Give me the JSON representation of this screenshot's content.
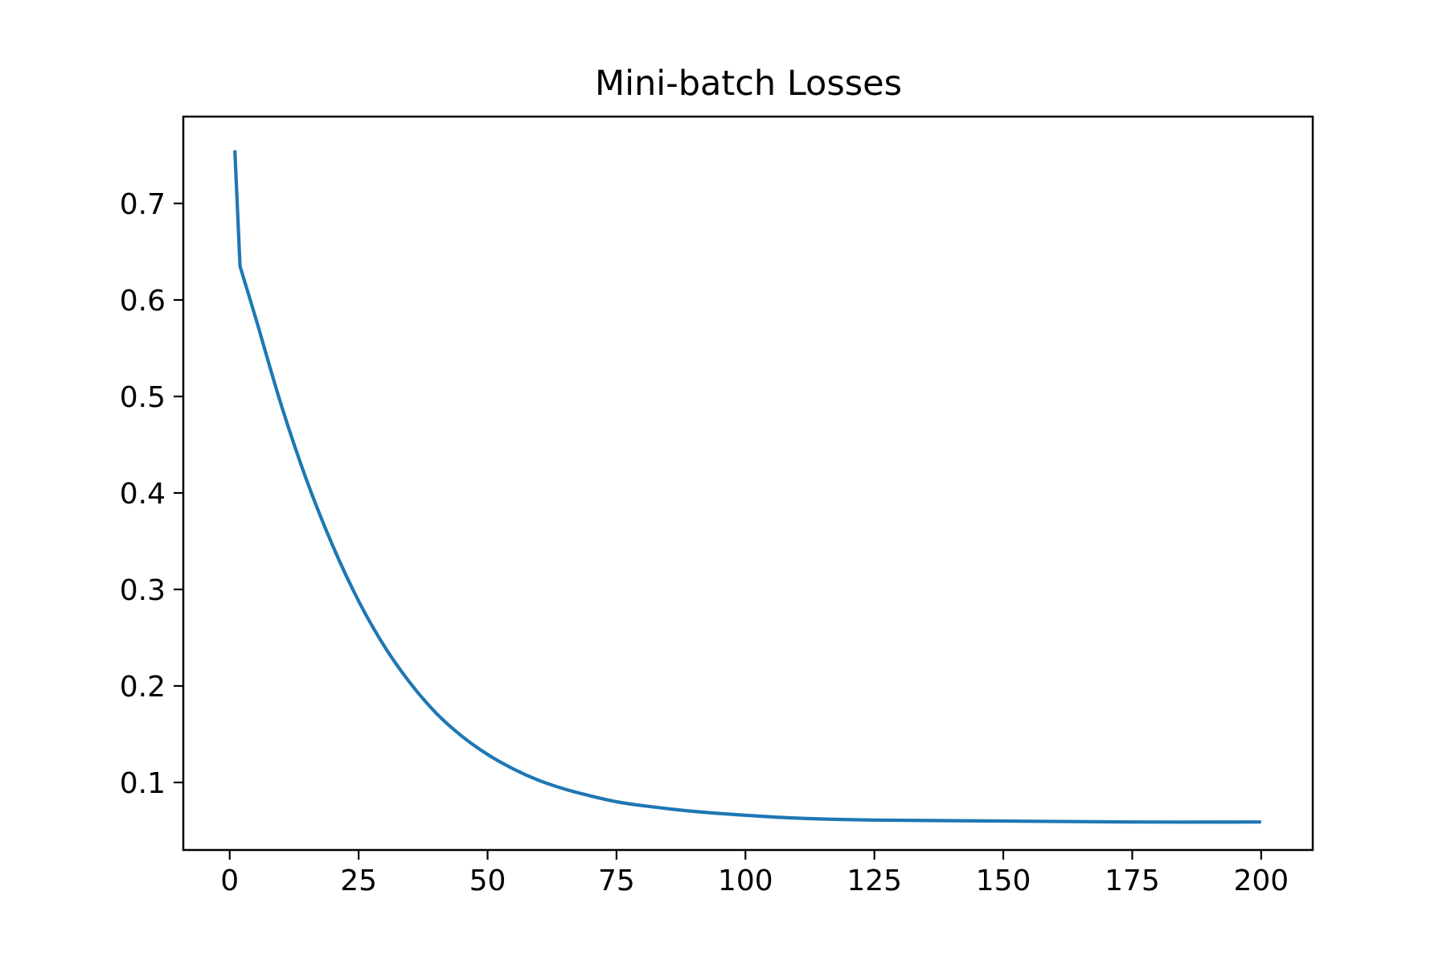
{
  "chart_data": {
    "type": "line",
    "title": "Mini-batch Losses",
    "xlabel": "",
    "ylabel": "",
    "xlim": [
      -9,
      210
    ],
    "ylim": [
      0.03,
      0.79
    ],
    "xticks": [
      0,
      25,
      50,
      75,
      100,
      125,
      150,
      175,
      200
    ],
    "xtick_labels": [
      "0",
      "25",
      "50",
      "75",
      "100",
      "125",
      "150",
      "175",
      "200"
    ],
    "yticks": [
      0.1,
      0.2,
      0.3,
      0.4,
      0.5,
      0.6,
      0.7
    ],
    "ytick_labels": [
      "0.1",
      "0.2",
      "0.3",
      "0.4",
      "0.5",
      "0.6",
      "0.7"
    ],
    "grid": false,
    "legend": "none",
    "series": [
      {
        "color": "#1f77b4",
        "x": [
          1,
          2,
          5,
          10,
          15,
          20,
          25,
          30,
          35,
          40,
          45,
          50,
          55,
          60,
          65,
          70,
          75,
          80,
          90,
          100,
          110,
          125,
          150,
          175,
          200
        ],
        "y": [
          0.755,
          0.635,
          0.582,
          0.491,
          0.412,
          0.345,
          0.288,
          0.241,
          0.203,
          0.172,
          0.148,
          0.129,
          0.114,
          0.102,
          0.093,
          0.086,
          0.08,
          0.076,
          0.07,
          0.066,
          0.063,
          0.061,
          0.06,
          0.059,
          0.059
        ]
      }
    ]
  }
}
